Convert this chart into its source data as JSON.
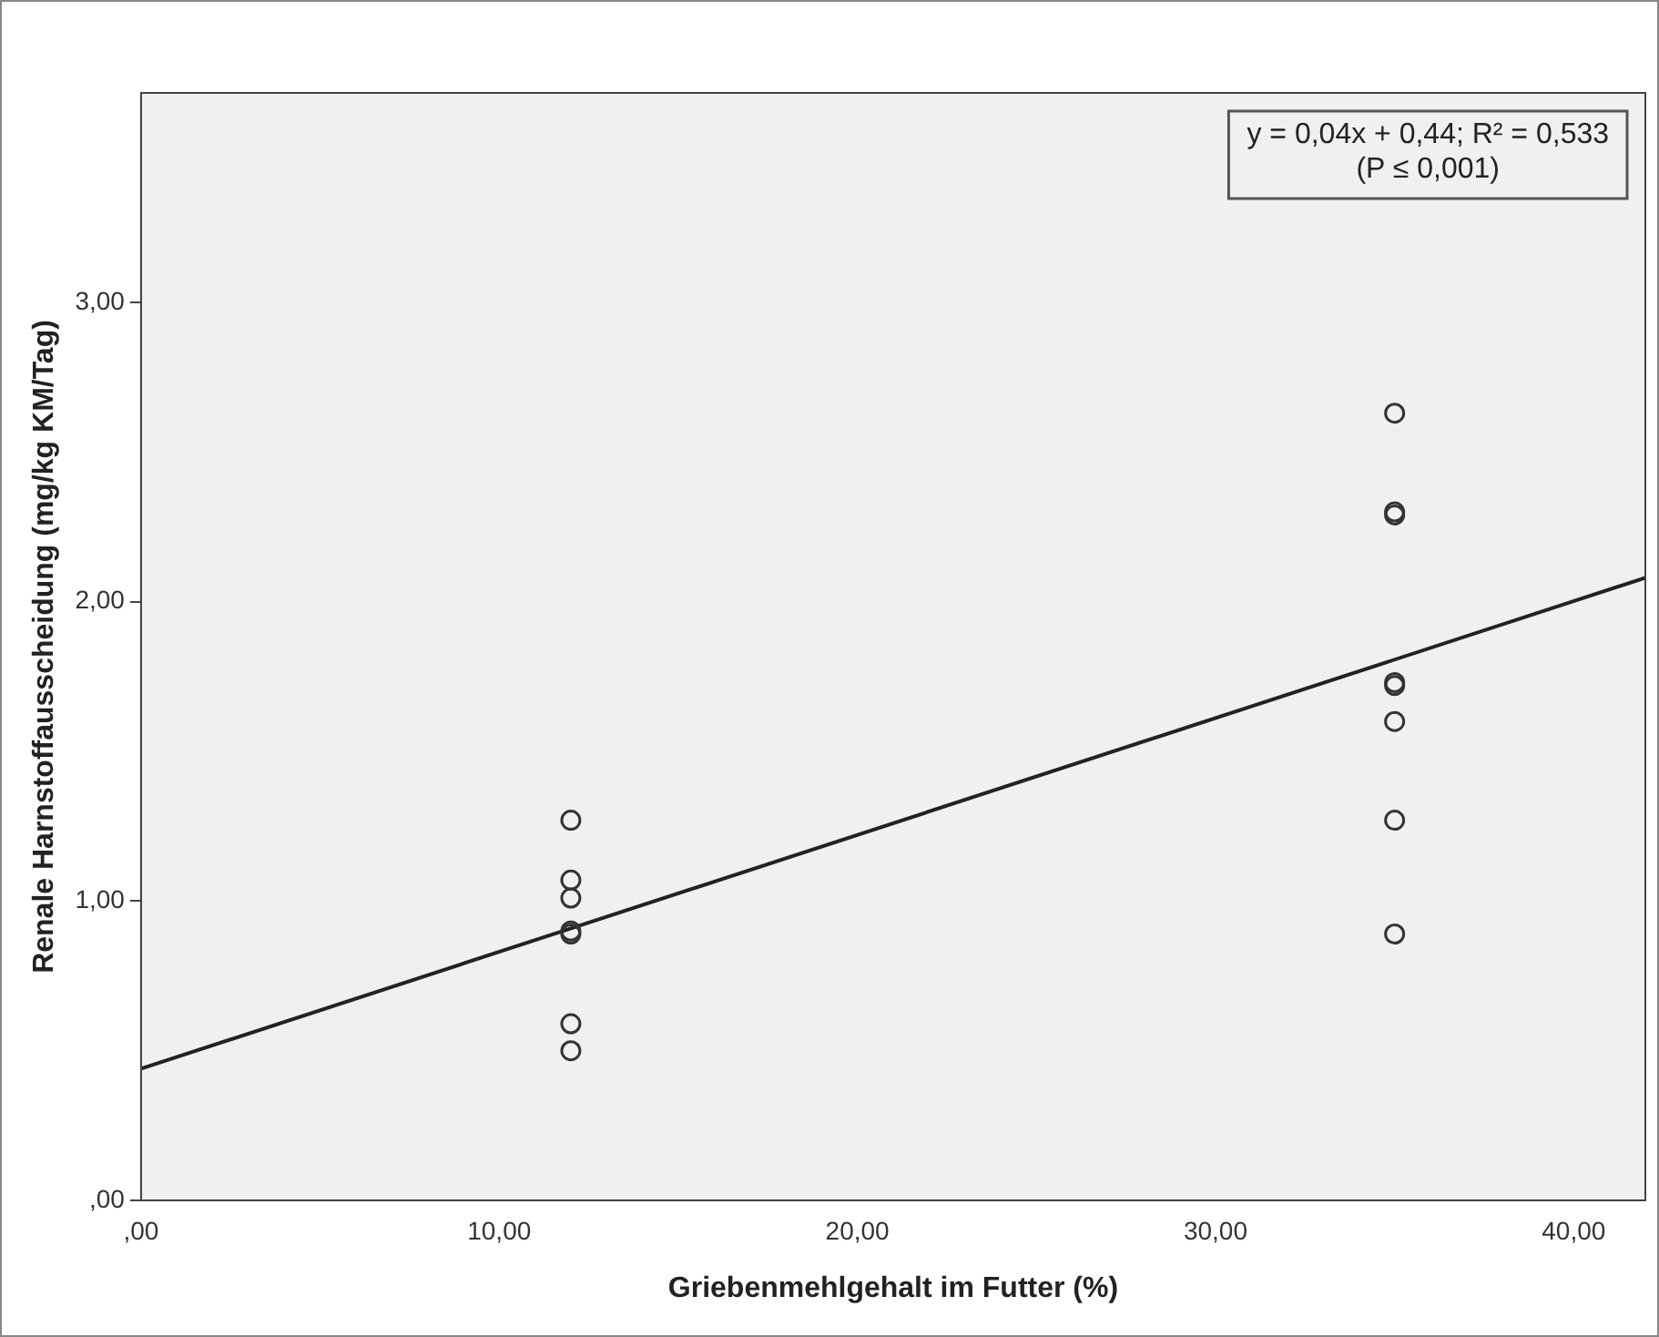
{
  "chart_data": {
    "type": "scatter",
    "xlabel": "Griebenmehlgehalt im Futter (%)",
    "ylabel": "Renale Harnstoffausscheidung (mg/kg KM/Tag)",
    "xlim": [
      0,
      42
    ],
    "ylim": [
      0,
      3.7
    ],
    "xticks": [
      {
        "value": 0,
        "label": ",00"
      },
      {
        "value": 10,
        "label": "10,00"
      },
      {
        "value": 20,
        "label": "20,00"
      },
      {
        "value": 30,
        "label": "30,00"
      },
      {
        "value": 40,
        "label": "40,00"
      }
    ],
    "yticks": [
      {
        "value": 0,
        "label": ",00"
      },
      {
        "value": 1,
        "label": "1,00"
      },
      {
        "value": 2,
        "label": "2,00"
      },
      {
        "value": 3,
        "label": "3,00"
      }
    ],
    "grid": false,
    "legend": false,
    "series": [
      {
        "marker": "circle",
        "color": "#333333",
        "x": [
          12,
          12,
          12,
          12,
          12,
          12,
          12,
          35,
          35,
          35,
          35,
          35,
          35,
          35,
          35
        ],
        "values": [
          1.27,
          1.07,
          1.01,
          0.89,
          0.9,
          0.59,
          0.5,
          2.63,
          2.3,
          2.29,
          1.73,
          1.72,
          1.6,
          1.27,
          0.89
        ]
      },
      {
        "type": "line",
        "marker": "none",
        "color": "#222222",
        "x": [
          0,
          42
        ],
        "values": [
          0.44,
          2.08
        ]
      }
    ],
    "annotations": [
      "y = 0,04x + 0,44; R² = 0,533",
      "(P ≤ 0,001)"
    ]
  }
}
